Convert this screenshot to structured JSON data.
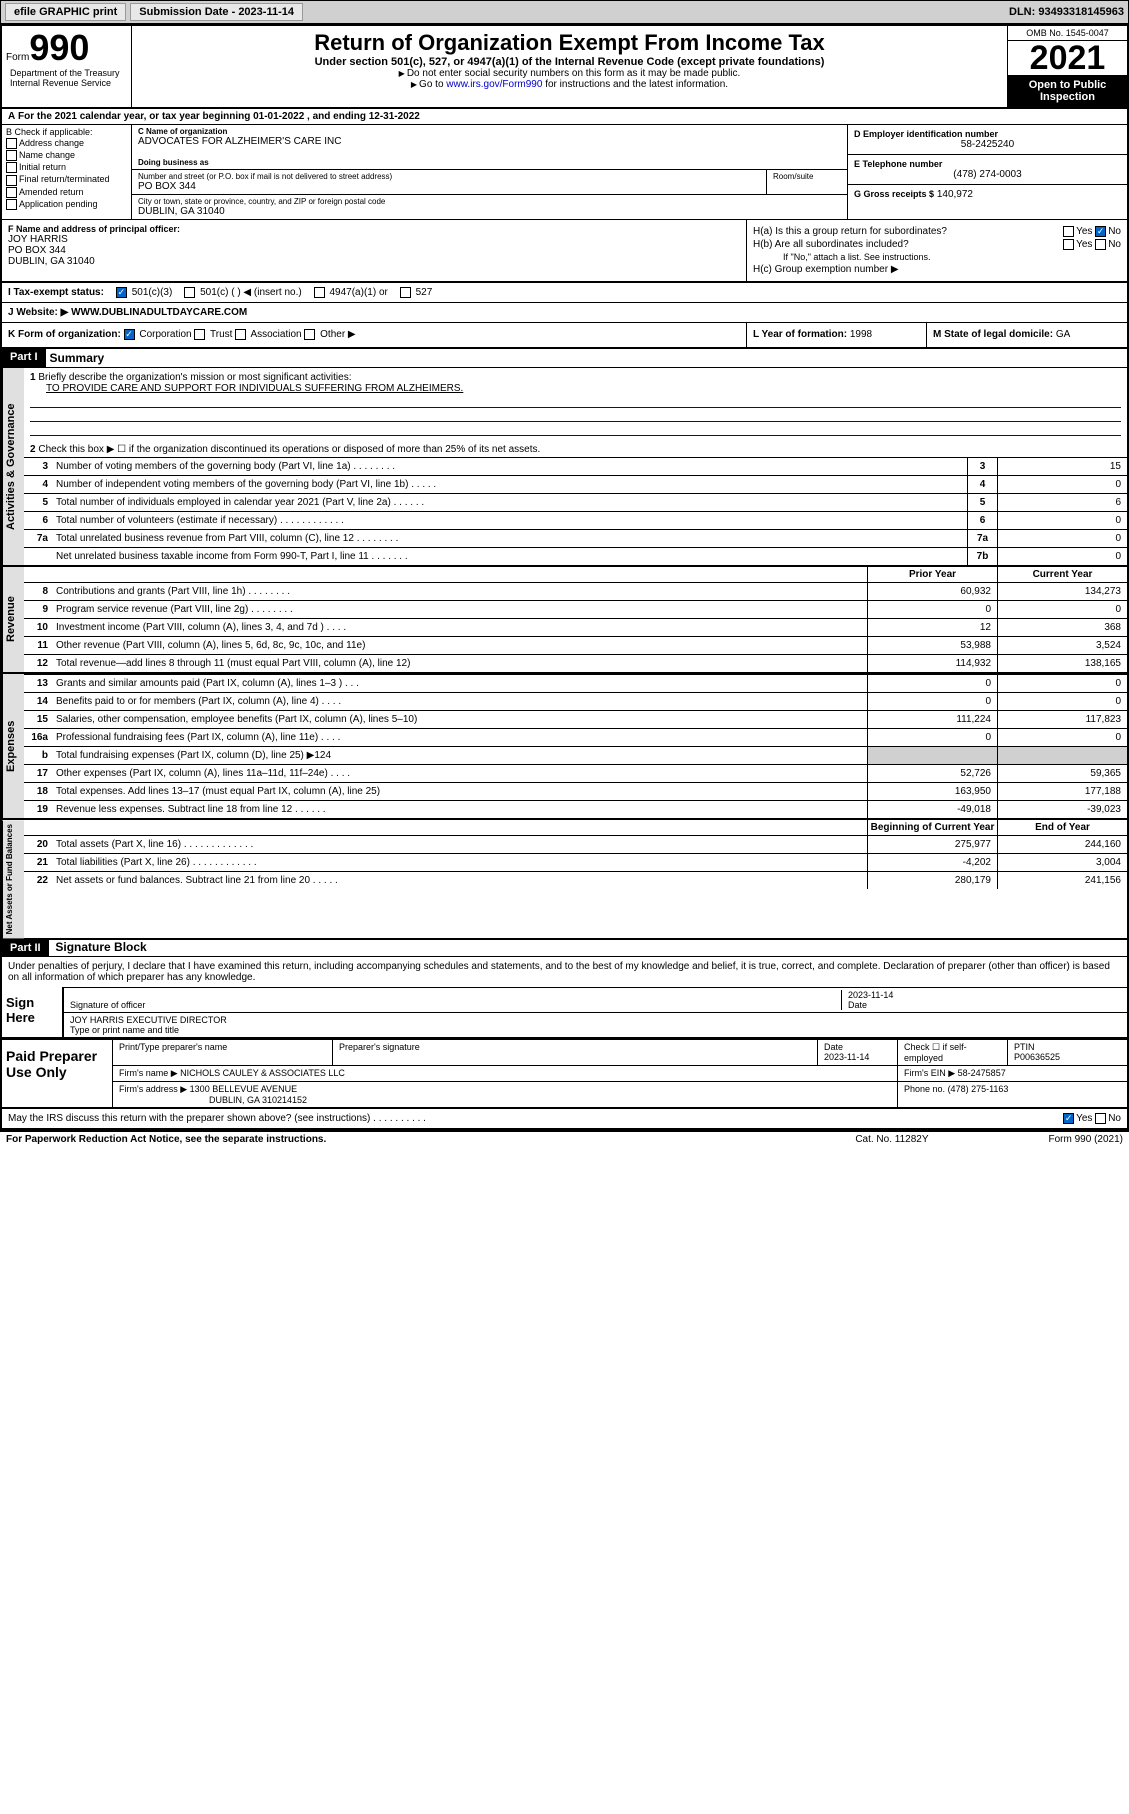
{
  "header": {
    "efile": "efile GRAPHIC print",
    "submission_label": "Submission Date - 2023-11-14",
    "dln": "DLN: 93493318145963"
  },
  "form": {
    "form_label": "Form",
    "form_num": "990",
    "title": "Return of Organization Exempt From Income Tax",
    "subtitle": "Under section 501(c), 527, or 4947(a)(1) of the Internal Revenue Code (except private foundations)",
    "instr1": "Do not enter social security numbers on this form as it may be made public.",
    "instr2_pre": "Go to ",
    "instr2_link": "www.irs.gov/Form990",
    "instr2_post": " for instructions and the latest information.",
    "omb": "OMB No. 1545-0047",
    "year": "2021",
    "inspection": "Open to Public Inspection",
    "dept": "Department of the Treasury Internal Revenue Service"
  },
  "period": {
    "text": "For the 2021 calendar year, or tax year beginning 01-01-2022    , and ending 12-31-2022"
  },
  "section_b": {
    "header": "B Check if applicable:",
    "checks": [
      "Address change",
      "Name change",
      "Initial return",
      "Final return/terminated",
      "Amended return",
      "Application pending"
    ]
  },
  "section_c": {
    "name_lbl": "C Name of organization",
    "name": "ADVOCATES FOR ALZHEIMER'S CARE INC",
    "dba_lbl": "Doing business as",
    "addr_lbl": "Number and street (or P.O. box if mail is not delivered to street address)",
    "room_lbl": "Room/suite",
    "addr": "PO BOX 344",
    "city_lbl": "City or town, state or province, country, and ZIP or foreign postal code",
    "city": "DUBLIN, GA  31040"
  },
  "section_d": {
    "lbl": "D Employer identification number",
    "val": "58-2425240"
  },
  "section_e": {
    "lbl": "E Telephone number",
    "val": "(478) 274-0003"
  },
  "section_g": {
    "lbl": "G Gross receipts $",
    "val": "140,972"
  },
  "section_f": {
    "lbl": "F Name and address of principal officer:",
    "name": "JOY HARRIS",
    "addr1": "PO BOX 344",
    "addr2": "DUBLIN, GA  31040"
  },
  "section_h": {
    "ha": "H(a)  Is this a group return for subordinates?",
    "hb": "H(b)  Are all subordinates included?",
    "hb_note": "If \"No,\" attach a list. See instructions.",
    "hc": "H(c)  Group exemption number ▶",
    "yes": "Yes",
    "no": "No"
  },
  "section_i": {
    "lbl": "I    Tax-exempt status:",
    "opts": [
      "501(c)(3)",
      "501(c) (  ) ◀ (insert no.)",
      "4947(a)(1) or",
      "527"
    ]
  },
  "section_j": {
    "lbl": "J    Website: ▶",
    "val": "WWW.DUBLINADULTDAYCARE.COM"
  },
  "section_k": {
    "lbl": "K Form of organization:",
    "opts": [
      "Corporation",
      "Trust",
      "Association",
      "Other ▶"
    ]
  },
  "section_l": {
    "lbl": "L Year of formation:",
    "val": "1998"
  },
  "section_m": {
    "lbl": "M State of legal domicile:",
    "val": "GA"
  },
  "part1": {
    "header": "Part I",
    "title": "Summary",
    "line1_lbl": "Briefly describe the organization's mission or most significant activities:",
    "line1_val": "TO PROVIDE CARE AND SUPPORT FOR INDIVIDUALS SUFFERING FROM ALZHEIMERS.",
    "line2": "Check this box ▶ ☐  if the organization discontinued its operations or disposed of more than 25% of its net assets.",
    "governance_label": "Activities & Governance",
    "revenue_label": "Revenue",
    "expenses_label": "Expenses",
    "netassets_label": "Net Assets or Fund Balances",
    "prior_year": "Prior Year",
    "current_year": "Current Year",
    "begin_year": "Beginning of Current Year",
    "end_year": "End of Year",
    "lines_single": [
      {
        "n": "3",
        "t": "Number of voting members of the governing body (Part VI, line 1a)   .    .    .    .    .    .    .    .",
        "box": "3",
        "v": "15"
      },
      {
        "n": "4",
        "t": "Number of independent voting members of the governing body (Part VI, line 1b)   .    .    .    .    .",
        "box": "4",
        "v": "0"
      },
      {
        "n": "5",
        "t": "Total number of individuals employed in calendar year 2021 (Part V, line 2a)   .    .    .    .    .    .",
        "box": "5",
        "v": "6"
      },
      {
        "n": "6",
        "t": "Total number of volunteers (estimate if necessary)   .    .    .    .    .    .    .    .    .    .    .    .",
        "box": "6",
        "v": "0"
      },
      {
        "n": "7a",
        "t": "Total unrelated business revenue from Part VIII, column (C), line 12   .    .    .    .    .    .    .    .",
        "box": "7a",
        "v": "0"
      },
      {
        "n": "",
        "t": "Net unrelated business taxable income from Form 990-T, Part I, line 11   .    .    .    .    .    .    .",
        "box": "7b",
        "v": "0"
      }
    ],
    "lines_rev": [
      {
        "n": "8",
        "t": "Contributions and grants (Part VIII, line 1h)   .    .    .    .    .    .    .    .",
        "py": "60,932",
        "cy": "134,273"
      },
      {
        "n": "9",
        "t": "Program service revenue (Part VIII, line 2g)   .    .    .    .    .    .    .    .",
        "py": "0",
        "cy": "0"
      },
      {
        "n": "10",
        "t": "Investment income (Part VIII, column (A), lines 3, 4, and 7d )   .    .    .    .",
        "py": "12",
        "cy": "368"
      },
      {
        "n": "11",
        "t": "Other revenue (Part VIII, column (A), lines 5, 6d, 8c, 9c, 10c, and 11e)",
        "py": "53,988",
        "cy": "3,524"
      },
      {
        "n": "12",
        "t": "Total revenue—add lines 8 through 11 (must equal Part VIII, column (A), line 12)",
        "py": "114,932",
        "cy": "138,165"
      }
    ],
    "lines_exp": [
      {
        "n": "13",
        "t": "Grants and similar amounts paid (Part IX, column (A), lines 1–3 )   .    .    .",
        "py": "0",
        "cy": "0"
      },
      {
        "n": "14",
        "t": "Benefits paid to or for members (Part IX, column (A), line 4)   .    .    .    .",
        "py": "0",
        "cy": "0"
      },
      {
        "n": "15",
        "t": "Salaries, other compensation, employee benefits (Part IX, column (A), lines 5–10)",
        "py": "111,224",
        "cy": "117,823"
      },
      {
        "n": "16a",
        "t": "Professional fundraising fees (Part IX, column (A), line 11e)   .    .    .    .",
        "py": "0",
        "cy": "0"
      },
      {
        "n": "b",
        "t": "Total fundraising expenses (Part IX, column (D), line 25) ▶124",
        "py": "",
        "cy": "",
        "shaded": true
      },
      {
        "n": "17",
        "t": "Other expenses (Part IX, column (A), lines 11a–11d, 11f–24e)   .    .    .    .",
        "py": "52,726",
        "cy": "59,365"
      },
      {
        "n": "18",
        "t": "Total expenses. Add lines 13–17 (must equal Part IX, column (A), line 25)",
        "py": "163,950",
        "cy": "177,188"
      },
      {
        "n": "19",
        "t": "Revenue less expenses. Subtract line 18 from line 12   .    .    .    .    .    .",
        "py": "-49,018",
        "cy": "-39,023"
      }
    ],
    "lines_net": [
      {
        "n": "20",
        "t": "Total assets (Part X, line 16)   .    .    .    .    .    .    .    .    .    .    .    .    .",
        "py": "275,977",
        "cy": "244,160"
      },
      {
        "n": "21",
        "t": "Total liabilities (Part X, line 26)   .    .    .    .    .    .    .    .    .    .    .    .",
        "py": "-4,202",
        "cy": "3,004"
      },
      {
        "n": "22",
        "t": "Net assets or fund balances. Subtract line 21 from line 20   .    .    .    .    .",
        "py": "280,179",
        "cy": "241,156"
      }
    ]
  },
  "part2": {
    "header": "Part II",
    "title": "Signature Block",
    "penalty": "Under penalties of perjury, I declare that I have examined this return, including accompanying schedules and statements, and to the best of my knowledge and belief, it is true, correct, and complete. Declaration of preparer (other than officer) is based on all information of which preparer has any knowledge.",
    "sign_here": "Sign Here",
    "sig_officer": "Signature of officer",
    "sig_date": "2023-11-14",
    "date_lbl": "Date",
    "officer_name": "JOY HARRIS  EXECUTIVE DIRECTOR",
    "officer_lbl": "Type or print name and title",
    "paid_header": "Paid Preparer Use Only",
    "prep_name_lbl": "Print/Type preparer's name",
    "prep_sig_lbl": "Preparer's signature",
    "prep_date_lbl": "Date",
    "prep_date": "2023-11-14",
    "check_self": "Check ☐ if self-employed",
    "ptin_lbl": "PTIN",
    "ptin": "P00636525",
    "firm_name_lbl": "Firm's name     ▶",
    "firm_name": "NICHOLS CAULEY & ASSOCIATES LLC",
    "firm_ein_lbl": "Firm's EIN ▶",
    "firm_ein": "58-2475857",
    "firm_addr_lbl": "Firm's address ▶",
    "firm_addr1": "1300 BELLEVUE AVENUE",
    "firm_addr2": "DUBLIN, GA  310214152",
    "phone_lbl": "Phone no.",
    "phone": "(478) 275-1163",
    "discuss": "May the IRS discuss this return with the preparer shown above? (see instructions)   .    .    .    .    .    .    .    .    .    .",
    "yes": "Yes",
    "no": "No"
  },
  "footer": {
    "paperwork": "For Paperwork Reduction Act Notice, see the separate instructions.",
    "cat": "Cat. No. 11282Y",
    "form": "Form 990 (2021)"
  }
}
